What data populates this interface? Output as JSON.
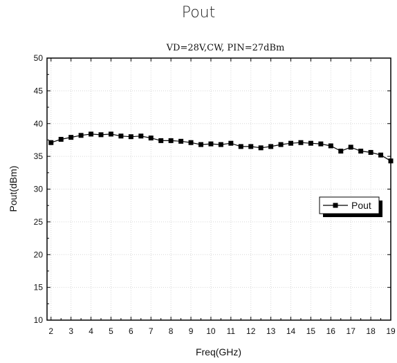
{
  "chart_data": {
    "type": "line",
    "title": "Pout",
    "subtitle": "VD=28V,CW, PIN=27dBm",
    "xlabel": "Freq(GHz)",
    "ylabel": "Pout(dBm)",
    "xlim": [
      1.8,
      19
    ],
    "ylim": [
      10,
      50
    ],
    "xticks": [
      2,
      3,
      4,
      5,
      6,
      7,
      8,
      9,
      10,
      11,
      12,
      13,
      14,
      15,
      16,
      17,
      18,
      19
    ],
    "yticks": [
      10,
      15,
      20,
      25,
      30,
      35,
      40,
      45,
      50
    ],
    "grid": true,
    "legend_position": "right",
    "series": [
      {
        "name": "Pout",
        "color": "#000000",
        "marker": "square",
        "x": [
          2,
          2.5,
          3,
          3.5,
          4,
          4.5,
          5,
          5.5,
          6,
          6.5,
          7,
          7.5,
          8,
          8.5,
          9,
          9.5,
          10,
          10.5,
          11,
          11.5,
          12,
          12.5,
          13,
          13.5,
          14,
          14.5,
          15,
          15.5,
          16,
          16.5,
          17,
          17.5,
          18,
          18.5,
          19
        ],
        "y": [
          37.1,
          37.6,
          37.9,
          38.2,
          38.4,
          38.3,
          38.4,
          38.1,
          38.0,
          38.1,
          37.8,
          37.4,
          37.4,
          37.3,
          37.1,
          36.8,
          36.9,
          36.8,
          37.0,
          36.5,
          36.5,
          36.3,
          36.5,
          36.8,
          37.0,
          37.1,
          37.0,
          36.9,
          36.6,
          35.8,
          36.4,
          35.8,
          35.6,
          35.2,
          34.3
        ]
      }
    ]
  }
}
